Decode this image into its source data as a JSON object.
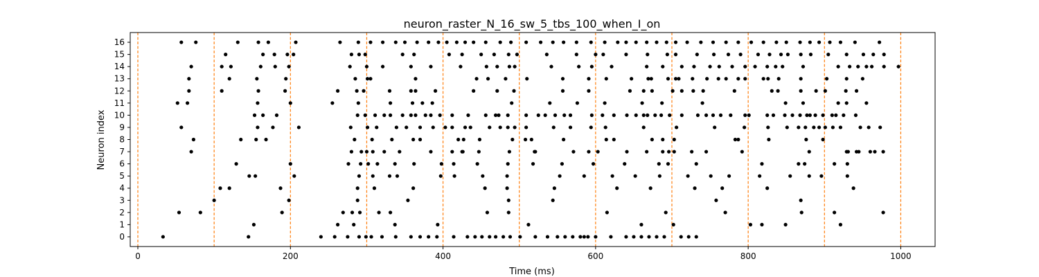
{
  "chart_data": {
    "type": "scatter",
    "title": "neuron_raster_N_16_sw_5_tbs_100_when_I_on",
    "xlabel": "Time (ms)",
    "ylabel": "Neuron index",
    "xlim": [
      -10,
      1045
    ],
    "ylim": [
      -0.8,
      16.8
    ],
    "x_ticks": [
      0,
      200,
      400,
      600,
      800,
      1000
    ],
    "x_tick_labels": [
      "0",
      "200",
      "400",
      "600",
      "800",
      "1000"
    ],
    "y_ticks": [
      0,
      1,
      2,
      3,
      4,
      5,
      6,
      7,
      8,
      9,
      10,
      11,
      12,
      13,
      14,
      15,
      16
    ],
    "y_tick_labels": [
      "0",
      "1",
      "2",
      "3",
      "4",
      "5",
      "6",
      "7",
      "8",
      "9",
      "10",
      "11",
      "12",
      "13",
      "14",
      "15",
      "16"
    ],
    "vlines": [
      0,
      100,
      200,
      300,
      400,
      500,
      600,
      700,
      800,
      900,
      1000
    ],
    "vline_color": "#ff7f0e",
    "marker_color": "#000000",
    "spikes": [
      {
        "neuron": 0,
        "times": [
          33,
          145,
          240,
          258,
          275,
          290,
          299,
          306,
          320,
          338,
          358,
          370,
          381,
          392,
          414,
          432,
          442,
          451,
          461,
          469,
          479,
          488,
          501,
          521,
          537,
          550,
          560,
          570,
          580,
          585,
          590,
          600,
          620,
          640,
          650,
          660,
          670,
          680,
          690,
          712,
          722,
          732
        ]
      },
      {
        "neuron": 1,
        "times": [
          152,
          262,
          283,
          337,
          393,
          512,
          660,
          702,
          803,
          818,
          849,
          921
        ]
      },
      {
        "neuron": 2,
        "times": [
          54,
          82,
          189,
          269,
          281,
          291,
          316,
          331,
          458,
          486,
          615,
          692,
          770,
          870,
          913,
          977
        ]
      },
      {
        "neuron": 3,
        "times": [
          100,
          288,
          198,
          354,
          486,
          544,
          758,
          869
        ]
      },
      {
        "neuron": 4,
        "times": [
          108,
          120,
          187,
          288,
          310,
          361,
          455,
          484,
          546,
          628,
          672,
          730,
          766,
          825,
          938
        ]
      },
      {
        "neuron": 5,
        "times": [
          146,
          154,
          205,
          290,
          308,
          330,
          340,
          397,
          415,
          452,
          484,
          553,
          585,
          622,
          652,
          684,
          721,
          751,
          775,
          815,
          855,
          880,
          896,
          930
        ]
      },
      {
        "neuron": 6,
        "times": [
          129,
          200,
          276,
          292,
          302,
          314,
          337,
          362,
          398,
          414,
          445,
          485,
          518,
          556,
          597,
          638,
          683,
          695,
          732,
          818,
          866,
          874,
          913,
          930
        ]
      },
      {
        "neuron": 7,
        "times": [
          70,
          280,
          293,
          300,
          308,
          323,
          343,
          384,
          412,
          425,
          426,
          447,
          487,
          520,
          521,
          571,
          591,
          603,
          641,
          667,
          688,
          696,
          703,
          726,
          745,
          792,
          880,
          929,
          931,
          942,
          945,
          960,
          966,
          977
        ]
      },
      {
        "neuron": 8,
        "times": [
          73,
          135,
          155,
          168,
          284,
          307,
          333,
          361,
          370,
          420,
          427,
          448,
          491,
          508,
          516,
          558,
          614,
          624,
          674,
          688,
          703,
          783,
          787,
          827,
          876,
          898
        ]
      },
      {
        "neuron": 9,
        "times": [
          57,
          157,
          177,
          211,
          279,
          301,
          313,
          339,
          352,
          370,
          387,
          403,
          412,
          429,
          436,
          461,
          475,
          485,
          494,
          509,
          545,
          567,
          594,
          613,
          663,
          706,
          756,
          795,
          826,
          851,
          866,
          875,
          886,
          893,
          901,
          911,
          921,
          947,
          958,
          973
        ]
      },
      {
        "neuron": 10,
        "times": [
          153,
          164,
          182,
          288,
          298,
          311,
          323,
          331,
          347,
          358,
          364,
          377,
          384,
          396,
          412,
          433,
          456,
          469,
          473,
          485,
          509,
          525,
          534,
          547,
          559,
          567,
          595,
          609,
          624,
          641,
          653,
          663,
          668,
          678,
          686,
          697,
          713,
          734,
          745,
          754,
          764,
          777,
          796,
          801,
          825,
          833,
          848,
          858,
          868,
          877,
          881,
          888,
          898,
          910,
          915,
          925,
          941
        ]
      }
    ],
    "spikes_upper": [
      {
        "neuron": 11,
        "times": [
          52,
          65,
          157,
          200,
          255,
          289,
          331,
          360,
          373,
          386,
          490,
          540,
          576,
          612,
          661,
          687,
          740,
          849,
          872,
          918,
          929,
          955
        ]
      },
      {
        "neuron": 12,
        "times": [
          67,
          110,
          158,
          193,
          262,
          287,
          296,
          330,
          358,
          364,
          390,
          440,
          471,
          493,
          557,
          591,
          645,
          663,
          674,
          701,
          713,
          728,
          741,
          782,
          831,
          839,
          869,
          889,
          901,
          928,
          942
        ]
      },
      {
        "neuron": 13,
        "times": [
          67,
          120,
          156,
          194,
          285,
          301,
          305,
          364,
          444,
          459,
          482,
          510,
          557,
          591,
          614,
          647,
          669,
          673,
          695,
          705,
          709,
          727,
          746,
          761,
          771,
          787,
          796,
          820,
          826,
          840,
          869,
          903,
          929,
          950
        ]
      },
      {
        "neuron": 14,
        "times": [
          70,
          110,
          122,
          161,
          180,
          198,
          278,
          300,
          321,
          358,
          384,
          423,
          457,
          471,
          487,
          494,
          542,
          578,
          595,
          621,
          667,
          688,
          713,
          729,
          750,
          762,
          779,
          796,
          809,
          825,
          836,
          845,
          872,
          918,
          933,
          944,
          955,
          962,
          978,
          997
        ]
      },
      {
        "neuron": 15,
        "times": [
          115,
          164,
          179,
          196,
          204,
          280,
          290,
          298,
          347,
          362,
          408,
          425,
          450,
          467,
          486,
          497,
          536,
          575,
          600,
          610,
          640,
          668,
          694,
          705,
          733,
          755,
          774,
          790,
          813,
          828,
          843,
          852,
          869,
          882,
          905,
          929,
          951,
          964,
          978
        ]
      },
      {
        "neuron": 16,
        "times": [
          57,
          76,
          131,
          158,
          171,
          207,
          265,
          289,
          305,
          321,
          338,
          350,
          366,
          381,
          394,
          405,
          418,
          429,
          440,
          456,
          475,
          489,
          509,
          528,
          544,
          558,
          575,
          594,
          612,
          629,
          640,
          653,
          667,
          680,
          693,
          705,
          720,
          738,
          754,
          771,
          787,
          804,
          820,
          837,
          850,
          868,
          881,
          893,
          907,
          921,
          940,
          972
        ]
      }
    ]
  }
}
